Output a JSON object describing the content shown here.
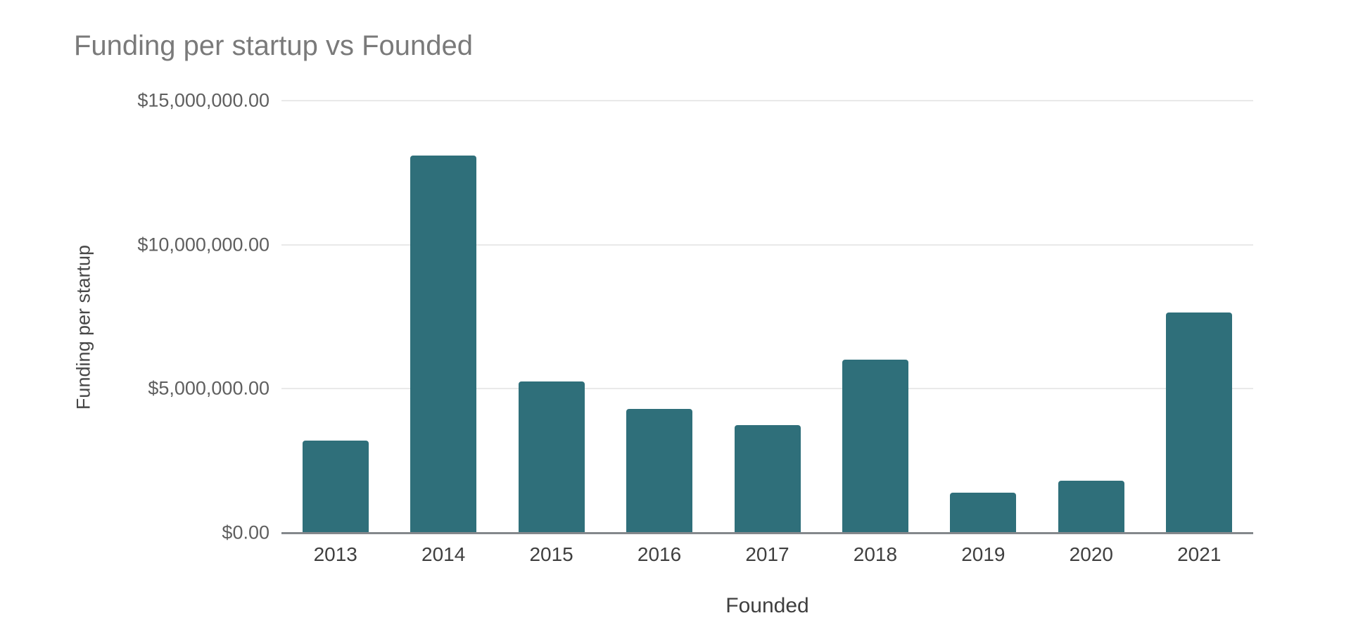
{
  "page": {
    "background": "#ffffff"
  },
  "chart_data": {
    "type": "bar",
    "title": "Funding per startup vs Founded",
    "xlabel": "Founded",
    "ylabel": "Funding per startup",
    "categories": [
      "2013",
      "2014",
      "2015",
      "2016",
      "2017",
      "2018",
      "2019",
      "2020",
      "2021"
    ],
    "values": [
      3200000,
      13100000,
      5250000,
      4300000,
      3750000,
      6000000,
      1400000,
      1800000,
      7650000
    ],
    "ylim": [
      0,
      15000000
    ],
    "y_ticks": [
      {
        "value": 0,
        "label": "$0.00"
      },
      {
        "value": 5000000,
        "label": "$5,000,000.00"
      },
      {
        "value": 10000000,
        "label": "$10,000,000.00"
      },
      {
        "value": 15000000,
        "label": "$15,000,000.00"
      }
    ],
    "grid": true,
    "legend": "none",
    "bar_color": "#2f6f7a"
  },
  "colors": {
    "bar": "#2f6f7a",
    "title_text": "#7a7a7a",
    "y_tick_text": "#5f5f5f",
    "x_tick_text": "#3f3f3f",
    "axis_title_text": "#474747",
    "gridline": "#e9e9e9",
    "baseline": "#84888c",
    "background": "#ffffff"
  }
}
